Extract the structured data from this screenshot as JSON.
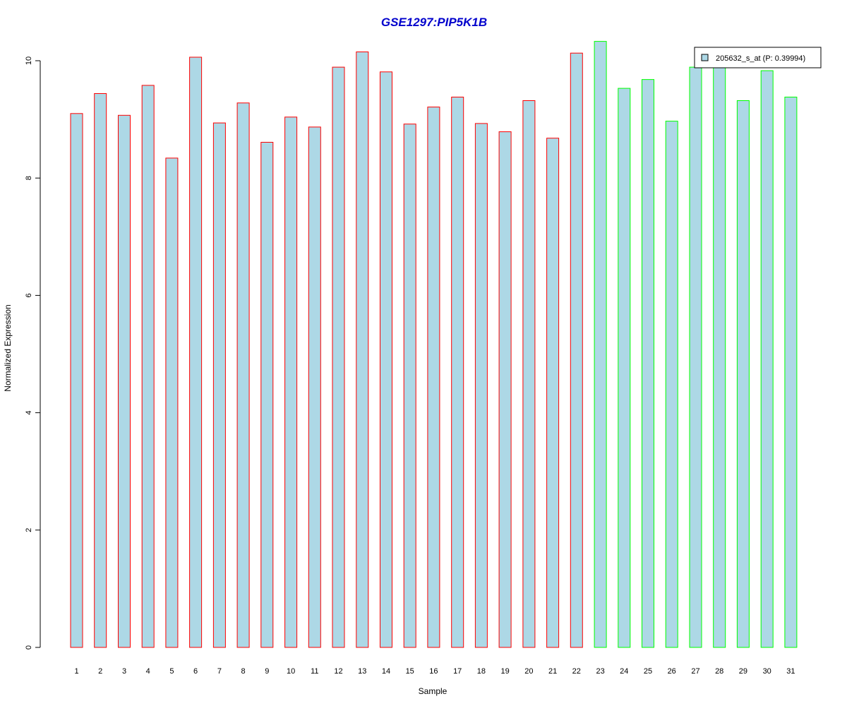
{
  "chart_data": {
    "type": "bar",
    "title": "GSE1297:PIP5K1B",
    "title_color": "#0000CC",
    "xlabel": "Sample",
    "ylabel": "Normalized Expression",
    "ylim": [
      0,
      10.4
    ],
    "yticks": [
      0,
      2,
      4,
      6,
      8,
      10
    ],
    "grid": false,
    "legend_position": "top-right",
    "bar_fill": "#ADD8E6",
    "categories": [
      "1",
      "2",
      "3",
      "4",
      "5",
      "6",
      "7",
      "8",
      "9",
      "10",
      "11",
      "12",
      "13",
      "14",
      "15",
      "16",
      "17",
      "18",
      "19",
      "20",
      "21",
      "22",
      "23",
      "24",
      "25",
      "26",
      "27",
      "28",
      "29",
      "30",
      "31"
    ],
    "series": [
      {
        "name": "205632_s_at (P: 0.39994)",
        "values": [
          9.1,
          9.44,
          9.07,
          9.58,
          8.34,
          10.06,
          8.94,
          9.28,
          8.61,
          9.04,
          8.87,
          9.89,
          10.15,
          9.81,
          8.92,
          9.21,
          9.38,
          8.93,
          8.79,
          9.32,
          8.68,
          10.13,
          10.33,
          9.53,
          9.68,
          8.97,
          9.89,
          9.89,
          9.32,
          9.83,
          9.38
        ]
      }
    ],
    "group_border_colors": [
      "#FF0000",
      "#FF0000",
      "#FF0000",
      "#FF0000",
      "#FF0000",
      "#FF0000",
      "#FF0000",
      "#FF0000",
      "#FF0000",
      "#FF0000",
      "#FF0000",
      "#FF0000",
      "#FF0000",
      "#FF0000",
      "#FF0000",
      "#FF0000",
      "#FF0000",
      "#FF0000",
      "#FF0000",
      "#FF0000",
      "#FF0000",
      "#FF0000",
      "#00FF00",
      "#00FF00",
      "#00FF00",
      "#00FF00",
      "#00FF00",
      "#00FF00",
      "#00FF00",
      "#00FF00",
      "#00FF00"
    ]
  }
}
